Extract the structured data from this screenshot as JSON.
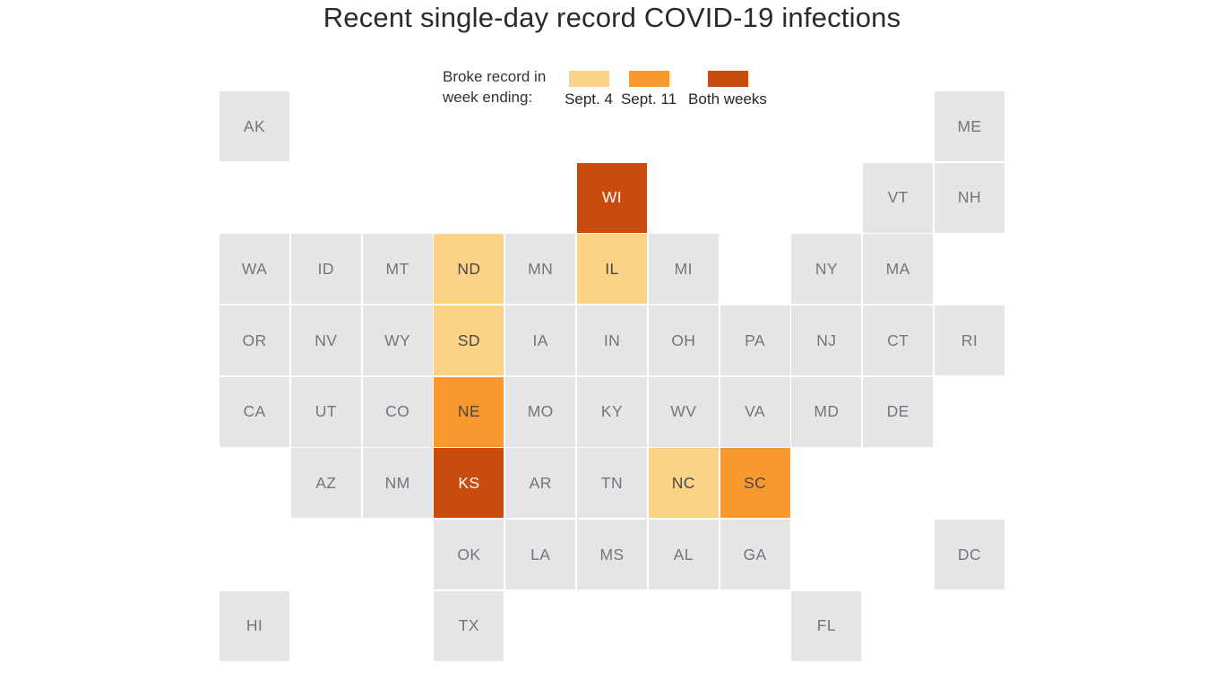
{
  "chart_data": {
    "type": "heatmap",
    "subtype": "us-state-tile-grid-map",
    "title": "Recent single-day record COVID-19 infections",
    "legend": {
      "caption_line1": "Broke record in",
      "caption_line2": "week ending:",
      "position": "top",
      "items": [
        {
          "key": "sept4",
          "label": "Sept. 4",
          "color": "#fcd384"
        },
        {
          "key": "sept11",
          "label": "Sept. 11",
          "color": "#f8982e"
        },
        {
          "key": "both",
          "label": "Both weeks",
          "color": "#c84b0f"
        }
      ]
    },
    "status_colors": {
      "none": "#e5e5e7",
      "sept4": "#fcd384",
      "sept11": "#f8982e",
      "both": "#c84b0f"
    },
    "grid": {
      "columns": 11,
      "rows": 8
    },
    "tiles": [
      {
        "state": "AK",
        "row": 1,
        "col": 1,
        "status": "none"
      },
      {
        "state": "ME",
        "row": 1,
        "col": 11,
        "status": "none"
      },
      {
        "state": "WI",
        "row": 2,
        "col": 6,
        "status": "both"
      },
      {
        "state": "VT",
        "row": 2,
        "col": 10,
        "status": "none"
      },
      {
        "state": "NH",
        "row": 2,
        "col": 11,
        "status": "none"
      },
      {
        "state": "WA",
        "row": 3,
        "col": 1,
        "status": "none"
      },
      {
        "state": "ID",
        "row": 3,
        "col": 2,
        "status": "none"
      },
      {
        "state": "MT",
        "row": 3,
        "col": 3,
        "status": "none"
      },
      {
        "state": "ND",
        "row": 3,
        "col": 4,
        "status": "sept4"
      },
      {
        "state": "MN",
        "row": 3,
        "col": 5,
        "status": "none"
      },
      {
        "state": "IL",
        "row": 3,
        "col": 6,
        "status": "sept4"
      },
      {
        "state": "MI",
        "row": 3,
        "col": 7,
        "status": "none"
      },
      {
        "state": "NY",
        "row": 3,
        "col": 9,
        "status": "none"
      },
      {
        "state": "MA",
        "row": 3,
        "col": 10,
        "status": "none"
      },
      {
        "state": "OR",
        "row": 4,
        "col": 1,
        "status": "none"
      },
      {
        "state": "NV",
        "row": 4,
        "col": 2,
        "status": "none"
      },
      {
        "state": "WY",
        "row": 4,
        "col": 3,
        "status": "none"
      },
      {
        "state": "SD",
        "row": 4,
        "col": 4,
        "status": "sept4"
      },
      {
        "state": "IA",
        "row": 4,
        "col": 5,
        "status": "none"
      },
      {
        "state": "IN",
        "row": 4,
        "col": 6,
        "status": "none"
      },
      {
        "state": "OH",
        "row": 4,
        "col": 7,
        "status": "none"
      },
      {
        "state": "PA",
        "row": 4,
        "col": 8,
        "status": "none"
      },
      {
        "state": "NJ",
        "row": 4,
        "col": 9,
        "status": "none"
      },
      {
        "state": "CT",
        "row": 4,
        "col": 10,
        "status": "none"
      },
      {
        "state": "RI",
        "row": 4,
        "col": 11,
        "status": "none"
      },
      {
        "state": "CA",
        "row": 5,
        "col": 1,
        "status": "none"
      },
      {
        "state": "UT",
        "row": 5,
        "col": 2,
        "status": "none"
      },
      {
        "state": "CO",
        "row": 5,
        "col": 3,
        "status": "none"
      },
      {
        "state": "NE",
        "row": 5,
        "col": 4,
        "status": "sept11"
      },
      {
        "state": "MO",
        "row": 5,
        "col": 5,
        "status": "none"
      },
      {
        "state": "KY",
        "row": 5,
        "col": 6,
        "status": "none"
      },
      {
        "state": "WV",
        "row": 5,
        "col": 7,
        "status": "none"
      },
      {
        "state": "VA",
        "row": 5,
        "col": 8,
        "status": "none"
      },
      {
        "state": "MD",
        "row": 5,
        "col": 9,
        "status": "none"
      },
      {
        "state": "DE",
        "row": 5,
        "col": 10,
        "status": "none"
      },
      {
        "state": "AZ",
        "row": 6,
        "col": 2,
        "status": "none"
      },
      {
        "state": "NM",
        "row": 6,
        "col": 3,
        "status": "none"
      },
      {
        "state": "KS",
        "row": 6,
        "col": 4,
        "status": "both"
      },
      {
        "state": "AR",
        "row": 6,
        "col": 5,
        "status": "none"
      },
      {
        "state": "TN",
        "row": 6,
        "col": 6,
        "status": "none"
      },
      {
        "state": "NC",
        "row": 6,
        "col": 7,
        "status": "sept4"
      },
      {
        "state": "SC",
        "row": 6,
        "col": 8,
        "status": "sept11"
      },
      {
        "state": "OK",
        "row": 7,
        "col": 4,
        "status": "none"
      },
      {
        "state": "LA",
        "row": 7,
        "col": 5,
        "status": "none"
      },
      {
        "state": "MS",
        "row": 7,
        "col": 6,
        "status": "none"
      },
      {
        "state": "AL",
        "row": 7,
        "col": 7,
        "status": "none"
      },
      {
        "state": "GA",
        "row": 7,
        "col": 8,
        "status": "none"
      },
      {
        "state": "DC",
        "row": 7,
        "col": 11,
        "status": "none"
      },
      {
        "state": "HI",
        "row": 8,
        "col": 1,
        "status": "none"
      },
      {
        "state": "TX",
        "row": 8,
        "col": 4,
        "status": "none"
      },
      {
        "state": "FL",
        "row": 8,
        "col": 9,
        "status": "none"
      }
    ]
  }
}
